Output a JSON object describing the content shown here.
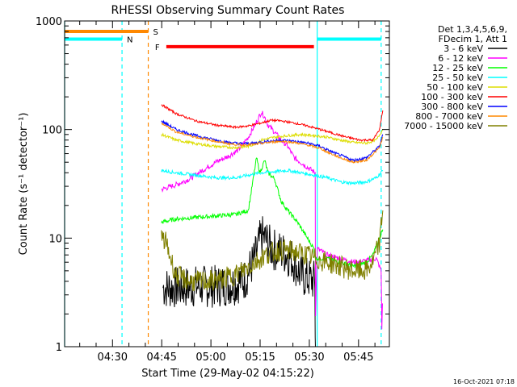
{
  "chart_data": {
    "type": "line",
    "title": "RHESSI Observing Summary Count Rates",
    "xlabel": "Start Time (29-May-02 04:15:22)",
    "ylabel": "Count Rate (s⁻¹ detector⁻¹)",
    "x_unit": "minutes after 04:15:22",
    "xlim": [
      0,
      99
    ],
    "ylim": [
      1,
      1000
    ],
    "yscale": "log",
    "x_ticks": [
      {
        "value": 14.6,
        "label": "04:30"
      },
      {
        "value": 29.6,
        "label": "04:45"
      },
      {
        "value": 44.6,
        "label": "05:00"
      },
      {
        "value": 59.6,
        "label": "05:15"
      },
      {
        "value": 74.6,
        "label": "05:30"
      },
      {
        "value": 89.6,
        "label": "05:45"
      }
    ],
    "y_ticks": [
      {
        "value": 1,
        "label": "1"
      },
      {
        "value": 10,
        "label": "10"
      },
      {
        "value": 100,
        "label": "100"
      },
      {
        "value": 1000,
        "label": "1000"
      }
    ],
    "legend": {
      "placement": "right",
      "header": [
        "Det 1,3,4,5,6,9,",
        "FDecim 1, Att 1"
      ]
    },
    "series": [
      {
        "name": "3 - 6 keV",
        "color": "#000000",
        "noise": 0.8,
        "points": [
          [
            30,
            3.5
          ],
          [
            36,
            3.5
          ],
          [
            40,
            3.6
          ],
          [
            46,
            3.6
          ],
          [
            52,
            3.8
          ],
          [
            55,
            4.2
          ],
          [
            58,
            6.5
          ],
          [
            60,
            10.5
          ],
          [
            61.5,
            9.5
          ],
          [
            63,
            8
          ],
          [
            66,
            7.5
          ],
          [
            68,
            7
          ],
          [
            70,
            6
          ],
          [
            72,
            4.5
          ],
          [
            76.3,
            4
          ],
          [
            76.5,
            0.5
          ]
        ]
      },
      {
        "name": "6 - 12 keV",
        "color": "#ff00ff",
        "noise": 0.1,
        "points": [
          [
            29.5,
            28
          ],
          [
            34,
            31
          ],
          [
            38,
            35
          ],
          [
            42,
            42
          ],
          [
            46,
            50
          ],
          [
            50,
            57
          ],
          [
            53,
            65
          ],
          [
            56,
            85
          ],
          [
            58,
            110
          ],
          [
            60,
            145
          ],
          [
            61,
            130
          ],
          [
            62,
            110
          ],
          [
            64,
            95
          ],
          [
            66,
            80
          ],
          [
            68,
            70
          ],
          [
            70,
            55
          ],
          [
            74,
            45
          ],
          [
            76.4,
            40
          ],
          [
            76.5,
            2
          ],
          [
            77,
            8
          ],
          [
            80,
            7
          ],
          [
            84,
            6.5
          ],
          [
            88,
            6
          ],
          [
            92,
            6.2
          ],
          [
            95,
            6.5
          ],
          [
            96.5,
            5
          ],
          [
            96.7,
            1.5
          ],
          [
            96.9,
            2.5
          ]
        ]
      },
      {
        "name": "12 - 25 keV",
        "color": "#00ff00",
        "noise": 0.08,
        "points": [
          [
            29.5,
            14
          ],
          [
            34,
            15
          ],
          [
            40,
            15.5
          ],
          [
            46,
            16
          ],
          [
            52,
            16.5
          ],
          [
            56,
            18
          ],
          [
            57,
            28
          ],
          [
            58.5,
            55
          ],
          [
            59.5,
            40
          ],
          [
            61,
            52
          ],
          [
            62,
            40
          ],
          [
            64,
            35
          ],
          [
            66,
            22
          ],
          [
            68,
            18
          ],
          [
            71,
            14
          ],
          [
            74,
            10
          ],
          [
            76,
            8
          ],
          [
            76.5,
            6.5
          ],
          [
            80,
            6.5
          ],
          [
            84,
            6
          ],
          [
            88,
            5.5
          ],
          [
            92,
            6
          ],
          [
            94,
            7
          ],
          [
            96,
            10
          ],
          [
            97,
            12
          ]
        ]
      },
      {
        "name": "25 - 50 keV",
        "color": "#00ffff",
        "noise": 0.06,
        "points": [
          [
            29.5,
            42
          ],
          [
            34,
            40
          ],
          [
            40,
            38
          ],
          [
            46,
            36
          ],
          [
            52,
            36
          ],
          [
            56,
            38
          ],
          [
            60,
            40
          ],
          [
            64,
            41
          ],
          [
            68,
            42
          ],
          [
            72,
            40
          ],
          [
            76,
            38
          ],
          [
            80,
            36
          ],
          [
            84,
            33
          ],
          [
            88,
            32
          ],
          [
            92,
            33
          ],
          [
            95,
            36
          ],
          [
            97,
            42
          ]
        ]
      },
      {
        "name": "50 - 100 keV",
        "color": "#dddd00",
        "noise": 0.05,
        "points": [
          [
            29.5,
            90
          ],
          [
            34,
            80
          ],
          [
            40,
            74
          ],
          [
            46,
            70
          ],
          [
            52,
            68
          ],
          [
            56,
            70
          ],
          [
            58,
            74
          ],
          [
            60,
            80
          ],
          [
            64,
            85
          ],
          [
            68,
            88
          ],
          [
            72,
            90
          ],
          [
            76,
            88
          ],
          [
            80,
            85
          ],
          [
            84,
            80
          ],
          [
            88,
            76
          ],
          [
            92,
            75
          ],
          [
            95,
            80
          ],
          [
            97,
            100
          ]
        ]
      },
      {
        "name": "100 - 300 keV",
        "color": "#ff0000",
        "noise": 0.04,
        "points": [
          [
            29.5,
            170
          ],
          [
            34,
            140
          ],
          [
            40,
            120
          ],
          [
            46,
            110
          ],
          [
            52,
            105
          ],
          [
            56,
            108
          ],
          [
            60,
            115
          ],
          [
            63,
            122
          ],
          [
            66,
            120
          ],
          [
            70,
            115
          ],
          [
            74,
            108
          ],
          [
            78,
            100
          ],
          [
            82,
            92
          ],
          [
            86,
            85
          ],
          [
            90,
            80
          ],
          [
            94,
            80
          ],
          [
            96,
            100
          ],
          [
            97,
            150
          ]
        ]
      },
      {
        "name": "300 - 800 keV",
        "color": "#0000ff",
        "noise": 0.05,
        "points": [
          [
            29.5,
            120
          ],
          [
            34,
            100
          ],
          [
            40,
            88
          ],
          [
            46,
            80
          ],
          [
            50,
            76
          ],
          [
            54,
            74
          ],
          [
            58,
            75
          ],
          [
            62,
            78
          ],
          [
            66,
            80
          ],
          [
            70,
            78
          ],
          [
            74,
            75
          ],
          [
            78,
            70
          ],
          [
            80,
            65
          ],
          [
            84,
            58
          ],
          [
            88,
            52
          ],
          [
            92,
            55
          ],
          [
            96,
            70
          ],
          [
            97,
            90
          ]
        ]
      },
      {
        "name": "800 - 7000 keV",
        "color": "#ff8800",
        "noise": 0.04,
        "points": [
          [
            29.5,
            115
          ],
          [
            34,
            95
          ],
          [
            40,
            85
          ],
          [
            46,
            78
          ],
          [
            50,
            74
          ],
          [
            54,
            72
          ],
          [
            58,
            73
          ],
          [
            62,
            76
          ],
          [
            66,
            78
          ],
          [
            70,
            76
          ],
          [
            74,
            72
          ],
          [
            78,
            67
          ],
          [
            80,
            62
          ],
          [
            84,
            55
          ],
          [
            88,
            50
          ],
          [
            92,
            52
          ],
          [
            96,
            68
          ],
          [
            97,
            85
          ]
        ]
      },
      {
        "name": "7000 - 15000 keV",
        "color": "#808000",
        "noise": 0.4,
        "points": [
          [
            29.5,
            10
          ],
          [
            31,
            9
          ],
          [
            32,
            7
          ],
          [
            34,
            4.5
          ],
          [
            38,
            4
          ],
          [
            44,
            4
          ],
          [
            48,
            4.2
          ],
          [
            52,
            4.6
          ],
          [
            55,
            5.2
          ],
          [
            58,
            6
          ],
          [
            62,
            7.2
          ],
          [
            66,
            7.8
          ],
          [
            70,
            7.5
          ],
          [
            74,
            7
          ],
          [
            76,
            6.5
          ],
          [
            80,
            6
          ],
          [
            84,
            5.5
          ],
          [
            88,
            5
          ],
          [
            92,
            5
          ],
          [
            94,
            6
          ],
          [
            96,
            9
          ],
          [
            97,
            18
          ]
        ]
      }
    ],
    "annotations": [
      {
        "label": "S",
        "color": "#ff8800",
        "x_start": 0,
        "x_end": 25.5,
        "y": 800
      },
      {
        "label": "N",
        "color": "#00ffff",
        "x_start": 0,
        "x_end": 17.5,
        "y": 680
      },
      {
        "label": "F",
        "color": "#ff0000",
        "x_start": 31,
        "x_end": 76,
        "y": 580
      },
      {
        "label": "",
        "color": "#00ffff",
        "x_start": 77,
        "x_end": 96.5,
        "y": 680
      }
    ],
    "vertical_lines": [
      {
        "x": 0,
        "color": "#00ffff",
        "style": "solid"
      },
      {
        "x": 17.5,
        "color": "#00ffff",
        "style": "dashed"
      },
      {
        "x": 25.5,
        "color": "#ff8800",
        "style": "dashed"
      },
      {
        "x": 77,
        "color": "#00ffff",
        "style": "solid"
      },
      {
        "x": 96.5,
        "color": "#00ffff",
        "style": "dashed"
      }
    ]
  },
  "timestamp": "16-Oct-2021 07:18"
}
